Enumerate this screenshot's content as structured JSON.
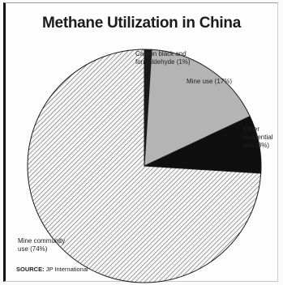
{
  "chart_data": {
    "type": "pie",
    "title": "Methane Utilization in China",
    "slices": [
      {
        "label_lines": [
          "Carbon black and",
          "formaldehyde (1%)"
        ],
        "value": 1,
        "fill": "#1a1a1a"
      },
      {
        "label_lines": [
          "Mine use (17%)"
        ],
        "value": 17,
        "fill": "#b4b4b4"
      },
      {
        "label_lines": [
          "Other",
          "residential",
          "use (8%)"
        ],
        "value": 8,
        "fill": "#0f0f0f"
      },
      {
        "label_lines": [
          "Mine community",
          "use (74%)"
        ],
        "value": 74,
        "fill": "hatch"
      }
    ],
    "start_angle_deg": 0,
    "direction": "clockwise"
  },
  "source": {
    "label": "SOURCE:",
    "text": "JP International"
  },
  "colors": {
    "outline": "#1a1a1a",
    "hatch_line": "#3a3a3a",
    "hatch_bg": "#f7f7f7"
  }
}
